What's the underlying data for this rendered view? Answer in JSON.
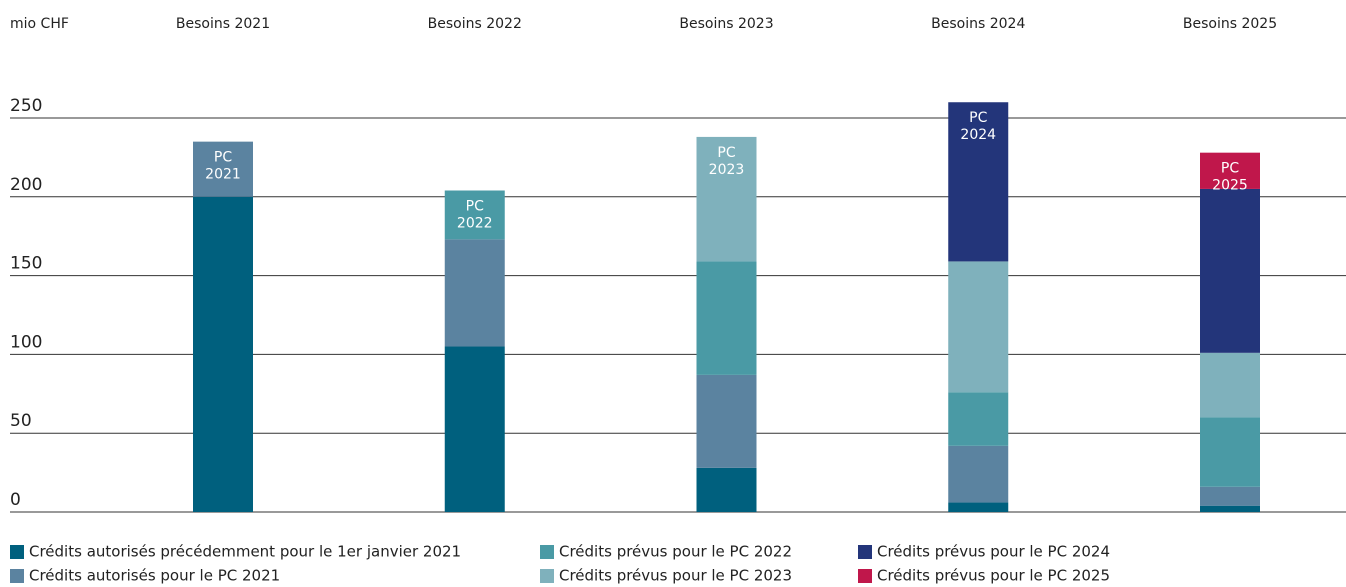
{
  "chart_data": {
    "type": "stacked_bar",
    "unit_label": "mio CHF",
    "categories": [
      "Besoins 2021",
      "Besoins 2022",
      "Besoins 2023",
      "Besoins 2024",
      "Besoins 2025"
    ],
    "bar_labels": [
      "PC 2021",
      "PC 2022",
      "PC 2023",
      "PC 2024",
      "PC 2025"
    ],
    "series": [
      {
        "name": "Crédits autorisés précédemment pour le 1er janvier 2021",
        "color": "#00607e",
        "values": [
          200,
          105,
          28,
          6,
          4
        ]
      },
      {
        "name": "Crédits autorisés pour le PC 2021",
        "color": "#5b83a0",
        "values": [
          35,
          68,
          59,
          36,
          12
        ]
      },
      {
        "name": "Crédits prévus pour le PC 2022",
        "color": "#4a9aa5",
        "values": [
          null,
          31,
          72,
          34,
          44
        ]
      },
      {
        "name": "Crédits prévus pour le PC 2023",
        "color": "#7fb1bc",
        "values": [
          null,
          null,
          79,
          83,
          41
        ]
      },
      {
        "name": "Crédits prévus pour le PC 2024",
        "color": "#23357a",
        "values": [
          null,
          null,
          null,
          101,
          104
        ]
      },
      {
        "name": "Crédits prévus pour le PC 2025",
        "color": "#c0174b",
        "values": [
          null,
          null,
          null,
          null,
          23
        ]
      }
    ],
    "ylim": [
      0,
      250
    ],
    "yticks": [
      0,
      50,
      100,
      150,
      200,
      250
    ],
    "grid": true
  }
}
